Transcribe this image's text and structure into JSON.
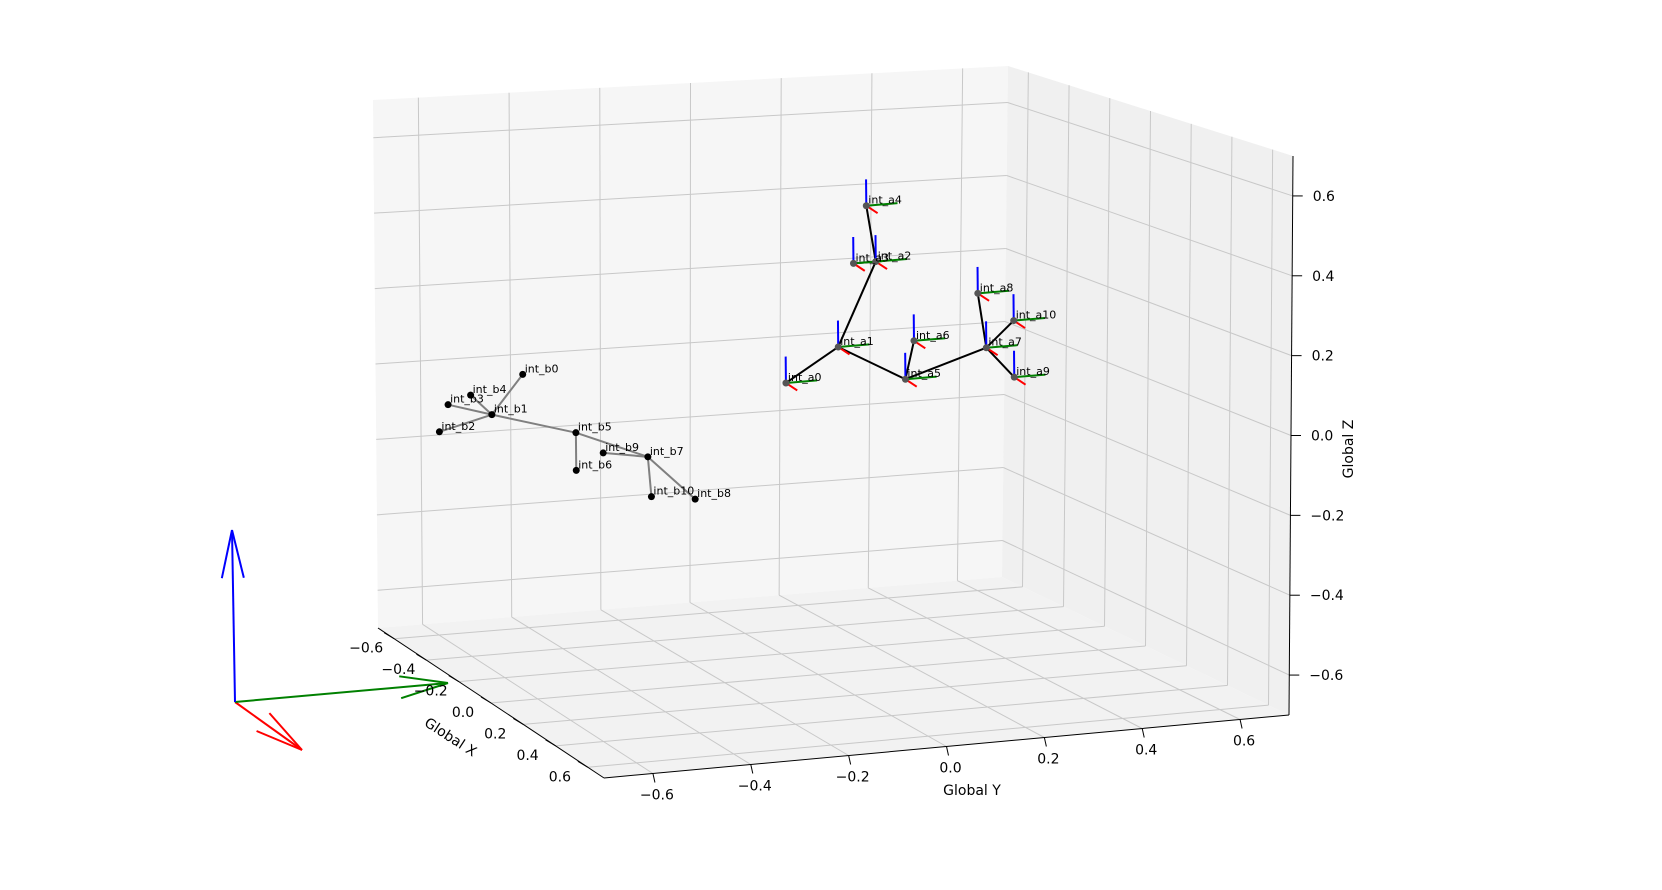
{
  "colors": {
    "axis_x": "#ff0000",
    "axis_y": "#008000",
    "axis_z": "#0000ff",
    "skeleton_a": "#000000",
    "skeleton_b": "#808080",
    "joint": "#000000"
  },
  "chart_data": {
    "type": "scatter",
    "subtype": "3d-skeleton-with-joint-frames",
    "xlabel": "Global X",
    "ylabel": "Global Y",
    "zlabel": "Global Z",
    "xlim": [
      -0.7,
      0.7
    ],
    "ylim": [
      -0.7,
      0.7
    ],
    "zlim": [
      -0.7,
      0.7
    ],
    "xticks": [
      "−0.6",
      "−0.4",
      "−0.2",
      "0.0",
      "0.2",
      "0.4",
      "0.6"
    ],
    "yticks": [
      "−0.6",
      "−0.4",
      "−0.2",
      "0.0",
      "0.2",
      "0.4",
      "0.6"
    ],
    "zticks": [
      "−0.6",
      "−0.4",
      "−0.2",
      "0.0",
      "0.2",
      "0.4",
      "0.6"
    ],
    "grid": true,
    "view": "elev≈15°, azim≈-20°",
    "series": [
      {
        "name": "int_a",
        "color": "#000000",
        "joints": [
          {
            "label": "int_a0",
            "x": 0.05,
            "y": -0.05,
            "z": 0.1
          },
          {
            "label": "int_a1",
            "x": 0.1,
            "y": 0.05,
            "z": 0.2
          },
          {
            "label": "int_a2",
            "x": 0.2,
            "y": 0.1,
            "z": 0.45
          },
          {
            "label": "int_a3",
            "x": 0.2,
            "y": 0.05,
            "z": 0.45
          },
          {
            "label": "int_a4",
            "x": 0.2,
            "y": 0.08,
            "z": 0.6
          },
          {
            "label": "int_a5",
            "x": 0.1,
            "y": 0.2,
            "z": 0.1
          },
          {
            "label": "int_a6",
            "x": 0.1,
            "y": 0.22,
            "z": 0.2
          },
          {
            "label": "int_a7",
            "x": 0.05,
            "y": 0.4,
            "z": 0.15
          },
          {
            "label": "int_a8",
            "x": 0.0,
            "y": 0.4,
            "z": 0.28
          },
          {
            "label": "int_a9",
            "x": 0.0,
            "y": 0.48,
            "z": 0.05
          },
          {
            "label": "int_a10",
            "x": 0.0,
            "y": 0.48,
            "z": 0.2
          }
        ],
        "bones": [
          [
            "int_a0",
            "int_a1"
          ],
          [
            "int_a1",
            "int_a2"
          ],
          [
            "int_a2",
            "int_a3"
          ],
          [
            "int_a2",
            "int_a4"
          ],
          [
            "int_a1",
            "int_a5"
          ],
          [
            "int_a5",
            "int_a6"
          ],
          [
            "int_a5",
            "int_a7"
          ],
          [
            "int_a7",
            "int_a8"
          ],
          [
            "int_a7",
            "int_a9"
          ],
          [
            "int_a7",
            "int_a10"
          ]
        ]
      },
      {
        "name": "int_b",
        "color": "#808080",
        "joints": [
          {
            "label": "int_b0",
            "x": -0.2,
            "y": -0.55,
            "z": 0.1
          },
          {
            "label": "int_b1",
            "x": -0.2,
            "y": -0.62,
            "z": 0.0
          },
          {
            "label": "int_b2",
            "x": -0.25,
            "y": -0.72,
            "z": -0.05
          },
          {
            "label": "int_b3",
            "x": -0.25,
            "y": -0.7,
            "z": 0.02
          },
          {
            "label": "int_b4",
            "x": -0.22,
            "y": -0.66,
            "z": 0.05
          },
          {
            "label": "int_b5",
            "x": -0.15,
            "y": -0.45,
            "z": -0.05
          },
          {
            "label": "int_b6",
            "x": -0.15,
            "y": -0.45,
            "z": -0.15
          },
          {
            "label": "int_b7",
            "x": -0.12,
            "y": -0.3,
            "z": -0.12
          },
          {
            "label": "int_b8",
            "x": -0.05,
            "y": -0.22,
            "z": -0.22
          },
          {
            "label": "int_b9",
            "x": -0.12,
            "y": -0.4,
            "z": -0.1
          },
          {
            "label": "int_b10",
            "x": -0.1,
            "y": -0.3,
            "z": -0.22
          }
        ],
        "bones": [
          [
            "int_b0",
            "int_b1"
          ],
          [
            "int_b1",
            "int_b2"
          ],
          [
            "int_b1",
            "int_b3"
          ],
          [
            "int_b1",
            "int_b4"
          ],
          [
            "int_b1",
            "int_b5"
          ],
          [
            "int_b5",
            "int_b6"
          ],
          [
            "int_b5",
            "int_b7"
          ],
          [
            "int_b7",
            "int_b8"
          ],
          [
            "int_b7",
            "int_b9"
          ],
          [
            "int_b7",
            "int_b10"
          ]
        ]
      }
    ],
    "origin_frame": {
      "x_color": "red",
      "y_color": "green",
      "z_color": "blue"
    }
  }
}
